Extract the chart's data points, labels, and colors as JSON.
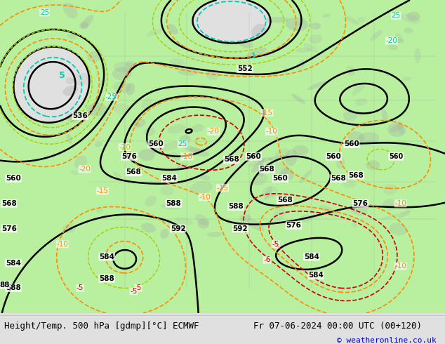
{
  "title_left": "Height/Temp. 500 hPa [gdmp][°C] ECMWF",
  "title_right": "Fr 07-06-2024 00:00 UTC (00+120)",
  "copyright": "© weatheronline.co.uk",
  "bg_color": "#e0e0e0",
  "green_fill": "#b8f0a0",
  "height_color": "#000000",
  "temp_orange": "#ff8c00",
  "temp_cyan": "#00ccaa",
  "temp_red": "#cc0000",
  "temp_yellow_green": "#aacc00",
  "figsize": [
    6.34,
    4.9
  ],
  "dpi": 100,
  "title_fontsize": 9,
  "copyright_fontsize": 8,
  "copyright_color": "#0000cc"
}
